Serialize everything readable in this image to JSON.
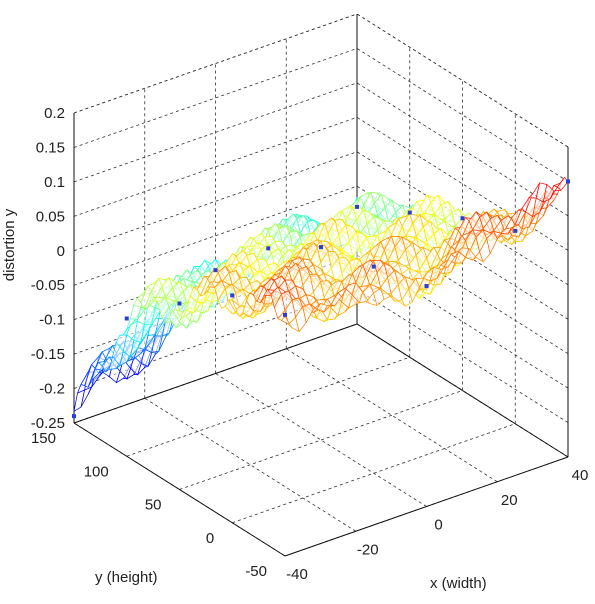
{
  "chart_data": {
    "type": "surface",
    "title": "",
    "xlabel": "x (width)",
    "ylabel": "y (height)",
    "zlabel": "distortion y",
    "xlim": [
      -40,
      40
    ],
    "ylim": [
      -50,
      150
    ],
    "zlim": [
      -0.25,
      0.2
    ],
    "x_ticks": [
      "-40",
      "-20",
      "0",
      "20",
      "40"
    ],
    "y_ticks": [
      "-50",
      "0",
      "50",
      "100",
      "150"
    ],
    "z_ticks": [
      "-0.25",
      "-0.2",
      "-0.15",
      "-0.1",
      "-0.05",
      "0",
      "0.05",
      "0.1",
      "0.15",
      "0.2"
    ],
    "grid": true,
    "colormap": "jet",
    "marker_color": "#2b3fd6",
    "approx_samples": [
      {
        "x": -40,
        "y": 150,
        "z": -0.24
      },
      {
        "x": -40,
        "y": 100,
        "z": -0.05
      },
      {
        "x": -40,
        "y": 50,
        "z": 0.02
      },
      {
        "x": -40,
        "y": 0,
        "z": 0.08
      },
      {
        "x": -40,
        "y": -50,
        "z": 0.1
      },
      {
        "x": 0,
        "y": 150,
        "z": -0.1
      },
      {
        "x": 0,
        "y": 100,
        "z": -0.02
      },
      {
        "x": 0,
        "y": 50,
        "z": 0.03
      },
      {
        "x": 0,
        "y": 0,
        "z": 0.05
      },
      {
        "x": 0,
        "y": -50,
        "z": 0.07
      },
      {
        "x": 40,
        "y": 150,
        "z": -0.08
      },
      {
        "x": 40,
        "y": 100,
        "z": -0.04
      },
      {
        "x": 40,
        "y": 50,
        "z": 0.0
      },
      {
        "x": 40,
        "y": 0,
        "z": 0.03
      },
      {
        "x": 40,
        "y": -50,
        "z": 0.15
      }
    ]
  }
}
